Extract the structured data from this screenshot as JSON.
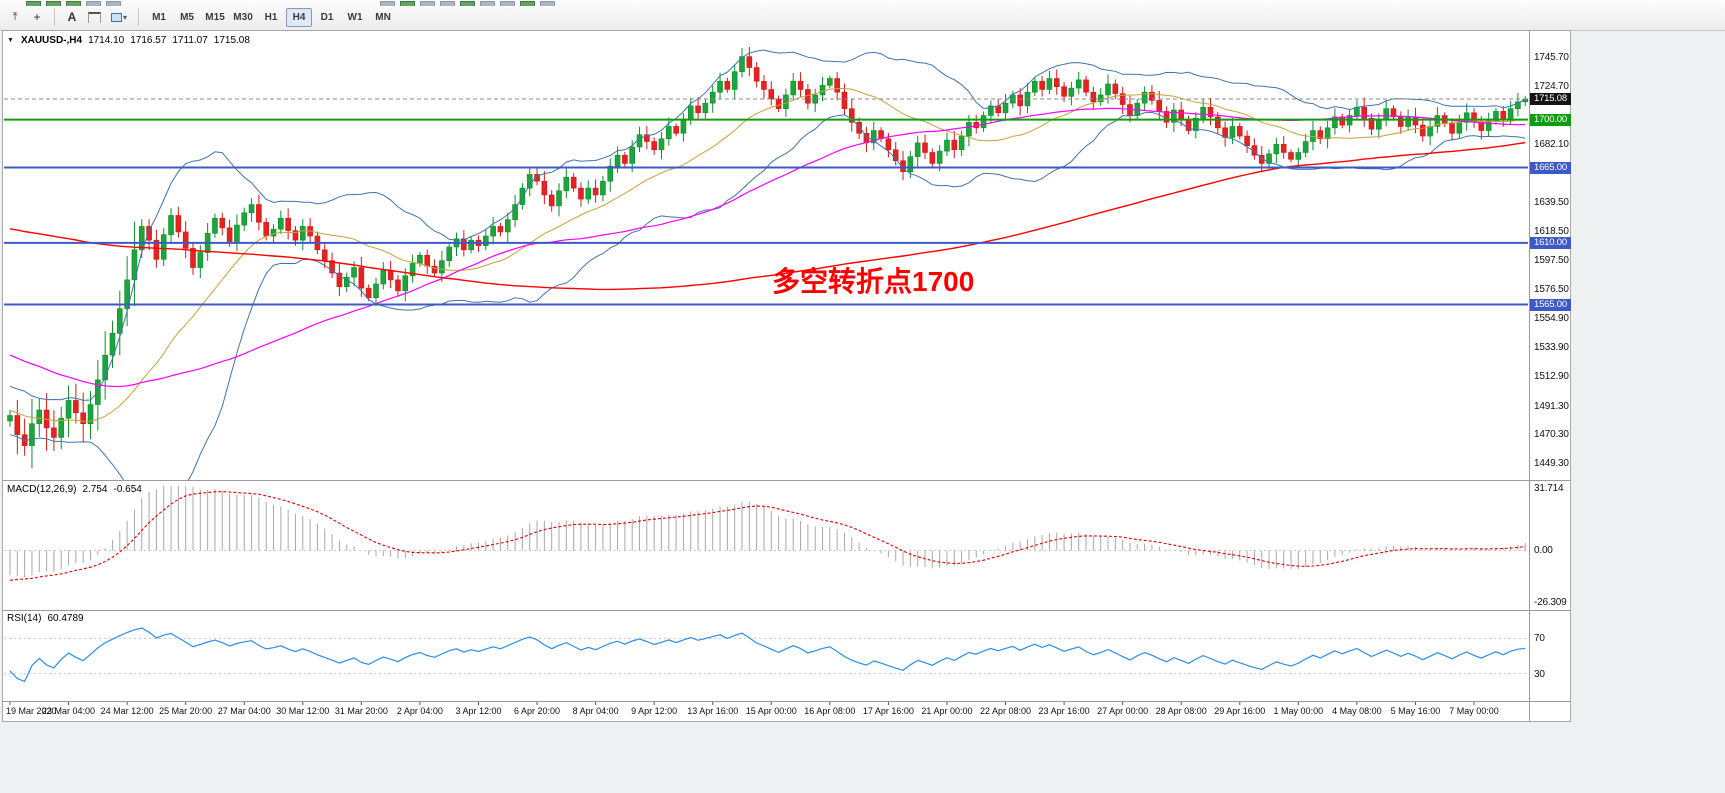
{
  "toolbar": {
    "text_tool_label": "A",
    "timeframes": [
      "M1",
      "M5",
      "M15",
      "M30",
      "H1",
      "H4",
      "D1",
      "W1",
      "MN"
    ],
    "active_timeframe": "H4"
  },
  "chart_header": {
    "symbol_period": "XAUUSD-,H4",
    "open": "1714.10",
    "high": "1716.57",
    "low": "1711.07",
    "close": "1715.08"
  },
  "annotation": {
    "text": "多空转折点1700",
    "color": "#ff0000"
  },
  "price_axis": {
    "labels": [
      "1745.70",
      "1724.70",
      "1682.10",
      "1639.50",
      "1618.50",
      "1597.50",
      "1576.50",
      "1554.90",
      "1533.90",
      "1512.90",
      "1491.30",
      "1470.30",
      "1449.30"
    ],
    "badges": [
      {
        "value": "1715.08",
        "price": 1715.08,
        "bg": "#141414"
      },
      {
        "value": "1700.00",
        "price": 1700.0,
        "bg": "#0f9d0f"
      },
      {
        "value": "1665.00",
        "price": 1665.0,
        "bg": "#3c59c6"
      },
      {
        "value": "1610.00",
        "price": 1610.0,
        "bg": "#3c59c6"
      },
      {
        "value": "1565.00",
        "price": 1565.0,
        "bg": "#3c59c6"
      }
    ]
  },
  "hlines": [
    {
      "price": 1715.08,
      "color": "#888888",
      "style": "dashed",
      "width": 1
    },
    {
      "price": 1700.0,
      "color": "#0f9d0f",
      "style": "solid",
      "width": 2
    },
    {
      "price": 1665.0,
      "color": "#3c59c6",
      "style": "solid",
      "width": 2
    },
    {
      "price": 1610.0,
      "color": "#3c59c6",
      "style": "solid",
      "width": 2
    },
    {
      "price": 1565.0,
      "color": "#3c59c6",
      "style": "solid",
      "width": 2
    }
  ],
  "time_axis": {
    "labels": [
      "19 Mar 2020",
      "23 Mar 04:00",
      "24 Mar 12:00",
      "25 Mar 20:00",
      "27 Mar 04:00",
      "30 Mar 12:00",
      "31 Mar 20:00",
      "2 Apr 04:00",
      "3 Apr 12:00",
      "6 Apr 20:00",
      "8 Apr 04:00",
      "9 Apr 12:00",
      "13 Apr 16:00",
      "15 Apr 00:00",
      "16 Apr 08:00",
      "17 Apr 16:00",
      "21 Apr 00:00",
      "22 Apr 08:00",
      "23 Apr 16:00",
      "27 Apr 00:00",
      "28 Apr 08:00",
      "29 Apr 16:00",
      "1 May 00:00",
      "4 May 08:00",
      "5 May 16:00",
      "7 May 00:00"
    ]
  },
  "macd_panel": {
    "label": "MACD(12,26,9)",
    "value_main": "2.754",
    "value_signal": "-0.654",
    "axis_max": "31.714",
    "axis_zero": "0.00",
    "axis_min": "-26.309"
  },
  "rsi_panel": {
    "label": "RSI(14)",
    "value": "60.4789",
    "level_upper": "70",
    "level_lower": "30"
  },
  "chart_data": {
    "type": "candlestick",
    "symbol": "XAUUSD",
    "timeframe": "H4",
    "visible_range": {
      "start": "19 Mar 2020",
      "end": "7 May 2020"
    },
    "price_axis_range": [
      1449.3,
      1745.7
    ],
    "current_price": 1715.08,
    "first_open": 1480,
    "closes": [
      1484,
      1470,
      1462,
      1478,
      1488,
      1475,
      1468,
      1482,
      1495,
      1486,
      1478,
      1492,
      1510,
      1528,
      1544,
      1562,
      1583,
      1605,
      1622,
      1612,
      1598,
      1616,
      1630,
      1618,
      1606,
      1592,
      1603,
      1617,
      1628,
      1621,
      1611,
      1623,
      1632,
      1638,
      1625,
      1615,
      1620,
      1628,
      1619,
      1612,
      1622,
      1615,
      1605,
      1597,
      1588,
      1578,
      1585,
      1592,
      1577,
      1570,
      1580,
      1590,
      1583,
      1575,
      1586,
      1595,
      1601,
      1593,
      1588,
      1597,
      1607,
      1613,
      1605,
      1612,
      1608,
      1615,
      1622,
      1618,
      1627,
      1638,
      1650,
      1660,
      1655,
      1645,
      1637,
      1648,
      1658,
      1650,
      1642,
      1650,
      1645,
      1655,
      1666,
      1674,
      1668,
      1680,
      1689,
      1684,
      1678,
      1686,
      1695,
      1690,
      1700,
      1710,
      1705,
      1712,
      1720,
      1728,
      1722,
      1735,
      1746,
      1738,
      1728,
      1722,
      1715,
      1708,
      1718,
      1728,
      1722,
      1712,
      1718,
      1725,
      1730,
      1720,
      1708,
      1698,
      1690,
      1683,
      1692,
      1686,
      1678,
      1670,
      1662,
      1673,
      1683,
      1676,
      1668,
      1677,
      1685,
      1678,
      1688,
      1698,
      1694,
      1703,
      1710,
      1705,
      1712,
      1718,
      1710,
      1720,
      1728,
      1722,
      1730,
      1724,
      1717,
      1723,
      1729,
      1720,
      1713,
      1718,
      1726,
      1719,
      1711,
      1703,
      1712,
      1720,
      1714,
      1706,
      1698,
      1707,
      1700,
      1692,
      1701,
      1709,
      1702,
      1694,
      1687,
      1695,
      1688,
      1681,
      1674,
      1668,
      1675,
      1682,
      1676,
      1671,
      1676,
      1684,
      1692,
      1686,
      1694,
      1702,
      1696,
      1703,
      1709,
      1701,
      1693,
      1700,
      1708,
      1702,
      1695,
      1702,
      1696,
      1688,
      1695,
      1703,
      1697,
      1690,
      1698,
      1705,
      1698,
      1692,
      1699,
      1706,
      1700,
      1708,
      1713,
      1715.1
    ],
    "overlays": [
      "Bollinger Bands (blue)",
      "MA fast (gold)",
      "MA medium (magenta)",
      "MA slow (red)"
    ],
    "indicators": [
      {
        "name": "MACD(12,26,9)",
        "values": [
          2.754,
          -0.654
        ],
        "axis": [
          31.714,
          0.0,
          -26.309
        ]
      },
      {
        "name": "RSI(14)",
        "value": 60.4789,
        "levels": [
          70,
          30
        ]
      }
    ]
  }
}
